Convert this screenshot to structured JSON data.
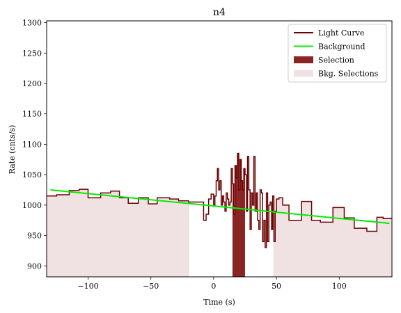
{
  "chart_data": {
    "type": "line",
    "title": "n4",
    "xlabel": "Time (s)",
    "ylabel": "Rate (cnts/s)",
    "xlim": [
      -133,
      142
    ],
    "ylim": [
      882,
      1303
    ],
    "xticks": [
      -100,
      -50,
      0,
      50,
      100
    ],
    "xtick_labels": [
      "−100",
      "−50",
      "0",
      "50",
      "100"
    ],
    "yticks": [
      900,
      950,
      1000,
      1050,
      1100,
      1150,
      1200,
      1250,
      1300
    ],
    "ytick_labels": [
      "900",
      "950",
      "1000",
      "1050",
      "1100",
      "1150",
      "1200",
      "1250",
      "1300"
    ],
    "grid": false,
    "legend_position": "top-right",
    "legend": [
      {
        "label": "Light Curve",
        "kind": "line",
        "color": "#6b0000"
      },
      {
        "label": "Background",
        "kind": "line",
        "color": "#00ee00"
      },
      {
        "label": "Selection",
        "kind": "patch",
        "color": "#8b2525"
      },
      {
        "label": "Bkg. Selections",
        "kind": "patch",
        "color": "#f0e2e2"
      }
    ],
    "colors": {
      "light_curve": "#6b0000",
      "background": "#00ee00",
      "selection": "#8b2525",
      "bkg_selection": "#f0e2e2",
      "bkg_selection_edge": "#e6cfcf"
    },
    "bkg_selections": [
      [
        -133,
        -20
      ],
      [
        48,
        142
      ]
    ],
    "selection": [
      15,
      25
    ],
    "background_line": {
      "x": [
        -130,
        140
      ],
      "y": [
        1025,
        970
      ]
    },
    "light_curve": {
      "x": [
        -133,
        -125,
        -115,
        -107,
        -100,
        -90,
        -82,
        -75,
        -68,
        -60,
        -52,
        -45,
        -35,
        -28,
        -20,
        -8,
        -6,
        -4,
        -2,
        0,
        1,
        2,
        3,
        4,
        5,
        6,
        7,
        8,
        9,
        10,
        11,
        12,
        13,
        14,
        15,
        16,
        17,
        18,
        19,
        20,
        21,
        22,
        23,
        24,
        25,
        26,
        27,
        28,
        29,
        30,
        31,
        32,
        33,
        34,
        35,
        36,
        37,
        38,
        39,
        40,
        41,
        42,
        43,
        44,
        45,
        46,
        47,
        48,
        49,
        50,
        52,
        55,
        60,
        70,
        78,
        85,
        95,
        104,
        112,
        122,
        130,
        135
      ],
      "y": [
        1015,
        1017,
        1024,
        1026,
        1012,
        1020,
        1023,
        1012,
        1003,
        1012,
        1002,
        1012,
        1010,
        1007,
        1005,
        975,
        985,
        1010,
        1018,
        1000,
        1015,
        1040,
        1060,
        1025,
        1040,
        1000,
        1015,
        1005,
        990,
        1020,
        1010,
        1000,
        1005,
        1060,
        1035,
        985,
        1065,
        1045,
        1085,
        1025,
        1075,
        1040,
        1025,
        1060,
        1050,
        990,
        1080,
        1025,
        960,
        1020,
        1000,
        1080,
        990,
        1020,
        975,
        960,
        1025,
        1020,
        940,
        975,
        930,
        1020,
        940,
        1000,
        1005,
        960,
        1015,
        940,
        990,
        1010,
        1012,
        1000,
        975,
        1006,
        975,
        972,
        996,
        979,
        962,
        957,
        980,
        978
      ]
    }
  }
}
